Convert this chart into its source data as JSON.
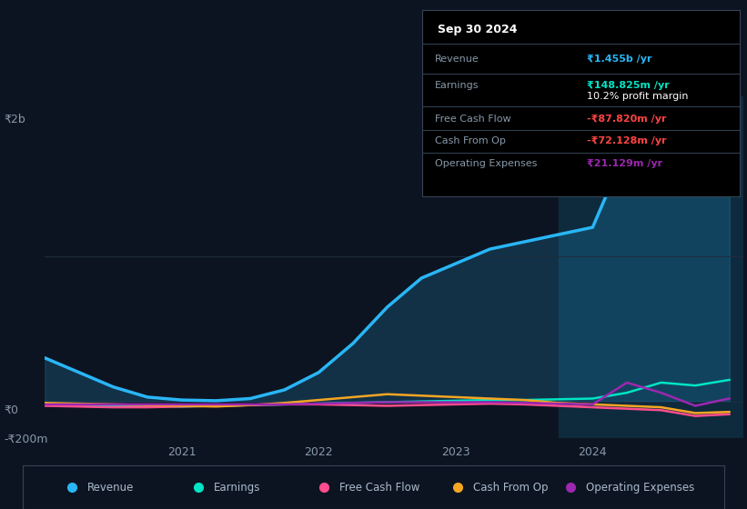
{
  "bg_color": "#0d1421",
  "grid_color": "#1e2d3d",
  "text_color": "#8899aa",
  "y2b_label": "₹2b",
  "y0_label": "₹0",
  "ym200_label": "-₹200m",
  "x_labels": [
    "2021",
    "2022",
    "2023",
    "2024"
  ],
  "legend_items": [
    {
      "label": "Revenue",
      "color": "#29b6f6"
    },
    {
      "label": "Earnings",
      "color": "#00e5c4"
    },
    {
      "label": "Free Cash Flow",
      "color": "#ff4d8d"
    },
    {
      "label": "Cash From Op",
      "color": "#f5a623"
    },
    {
      "label": "Operating Expenses",
      "color": "#9c27b0"
    }
  ],
  "tooltip": {
    "date": "Sep 30 2024",
    "rows": [
      {
        "label": "Revenue",
        "value": "₹1.455b /yr",
        "value_color": "#29b6f6",
        "margin": null
      },
      {
        "label": "Earnings",
        "value": "₹148.825m /yr",
        "value_color": "#00e5c4",
        "margin": "10.2% profit margin"
      },
      {
        "label": "Free Cash Flow",
        "value": "-₹87.820m /yr",
        "value_color": "#ff4444",
        "margin": null
      },
      {
        "label": "Cash From Op",
        "value": "-₹72.128m /yr",
        "value_color": "#ff4444",
        "margin": null
      },
      {
        "label": "Operating Expenses",
        "value": "₹21.129m /yr",
        "value_color": "#9c27b0",
        "margin": null
      }
    ]
  },
  "revenue": {
    "color": "#29b6f6",
    "x": [
      2020.0,
      2020.25,
      2020.5,
      2020.75,
      2021.0,
      2021.25,
      2021.5,
      2021.75,
      2022.0,
      2022.25,
      2022.5,
      2022.75,
      2023.0,
      2023.25,
      2023.5,
      2023.75,
      2024.0,
      2024.25,
      2024.5,
      2024.75,
      2025.0
    ],
    "y": [
      300,
      200,
      100,
      30,
      10,
      5,
      20,
      80,
      200,
      400,
      650,
      850,
      950,
      1050,
      1100,
      1150,
      1200,
      1750,
      1850,
      1600,
      1455
    ]
  },
  "earnings": {
    "color": "#00e5c4",
    "x": [
      2020.0,
      2020.25,
      2020.5,
      2020.75,
      2021.0,
      2021.25,
      2021.5,
      2021.75,
      2022.0,
      2022.25,
      2022.5,
      2022.75,
      2023.0,
      2023.25,
      2023.5,
      2023.75,
      2024.0,
      2024.25,
      2024.5,
      2024.75,
      2025.0
    ],
    "y": [
      -20,
      -25,
      -30,
      -30,
      -35,
      -30,
      -25,
      -20,
      -15,
      -10,
      -5,
      0,
      5,
      10,
      10,
      15,
      20,
      60,
      130,
      110,
      149
    ]
  },
  "free_cash_flow": {
    "color": "#ff4d8d",
    "x": [
      2020.0,
      2020.25,
      2020.5,
      2020.75,
      2021.0,
      2021.25,
      2021.5,
      2021.75,
      2022.0,
      2022.25,
      2022.5,
      2022.75,
      2023.0,
      2023.25,
      2023.5,
      2023.75,
      2024.0,
      2024.25,
      2024.5,
      2024.75,
      2025.0
    ],
    "y": [
      -30,
      -35,
      -40,
      -40,
      -35,
      -30,
      -25,
      -20,
      -20,
      -25,
      -30,
      -25,
      -20,
      -15,
      -20,
      -30,
      -40,
      -50,
      -60,
      -100,
      -88
    ]
  },
  "cash_from_op": {
    "color": "#f5a623",
    "x": [
      2020.0,
      2020.25,
      2020.5,
      2020.75,
      2021.0,
      2021.25,
      2021.5,
      2021.75,
      2022.0,
      2022.25,
      2022.5,
      2022.75,
      2023.0,
      2023.25,
      2023.5,
      2023.75,
      2024.0,
      2024.25,
      2024.5,
      2024.75,
      2025.0
    ],
    "y": [
      -10,
      -15,
      -20,
      -25,
      -30,
      -35,
      -25,
      -10,
      10,
      30,
      50,
      40,
      30,
      20,
      10,
      -10,
      -20,
      -30,
      -40,
      -80,
      -72
    ]
  },
  "operating_expenses": {
    "color": "#9c27b0",
    "x": [
      2020.0,
      2020.25,
      2020.5,
      2020.75,
      2021.0,
      2021.25,
      2021.5,
      2021.75,
      2022.0,
      2022.25,
      2022.5,
      2022.75,
      2023.0,
      2023.25,
      2023.5,
      2023.75,
      2024.0,
      2024.25,
      2024.5,
      2024.75,
      2025.0
    ],
    "y": [
      -20,
      -20,
      -20,
      -20,
      -20,
      -20,
      -20,
      -20,
      -15,
      -10,
      -5,
      -5,
      -5,
      -5,
      -10,
      -15,
      -20,
      130,
      60,
      -30,
      21
    ]
  },
  "highlight_x_start": 2023.75,
  "highlight_x_end": 2025.1,
  "x_min": 2020.0,
  "x_max": 2025.1,
  "y_min": -250,
  "y_max": 2100
}
